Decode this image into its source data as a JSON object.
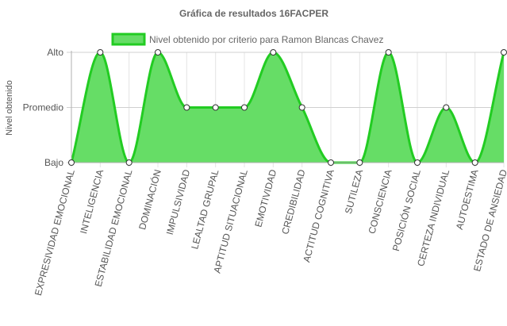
{
  "chart_data": {
    "type": "area",
    "title": "Gráfica de resultados 16FACPER",
    "ylabel": "Nivel obtenido",
    "xlabel": "",
    "y_levels": [
      "Bajo",
      "Promedio",
      "Alto"
    ],
    "ylim": [
      0,
      2
    ],
    "grid": true,
    "legend_position": "top",
    "categories": [
      "EXPRESIVIDAD EMOCIONAL",
      "INTELIGENCIA",
      "ESTABILIDAD EMOCIONAL",
      "DOMINACIÓN",
      "IMPULSIVIDAD",
      "LEALTAD GRUPAL",
      "APTITUD SITUACIONAL",
      "EMOTIVIDAD",
      "CREDIBILIDAD",
      "ACTITUD COGNITIVA",
      "SUTILEZA",
      "CONSCIENCIA",
      "POSICIÓN SOCIAL",
      "CERTEZA INDIVIDUAL",
      "AUTOESTIMA",
      "ESTADO DE ANSIEDAD"
    ],
    "series": [
      {
        "name": "Nivel obtenido por criterio para Ramon Blancas Chavez",
        "values": [
          0,
          2,
          0,
          2,
          1,
          1,
          1,
          2,
          1,
          0,
          0,
          2,
          0,
          1,
          0,
          2
        ],
        "color": "#22cc22",
        "fill": "#66dd66"
      }
    ]
  }
}
